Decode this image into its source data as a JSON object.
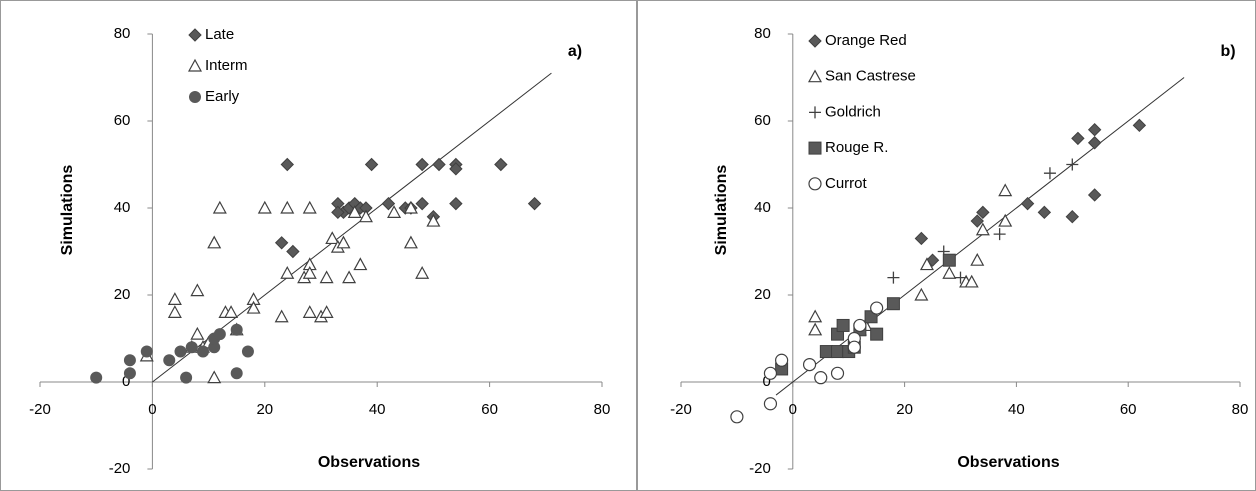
{
  "chart_data": [
    {
      "type": "scatter",
      "title": "a)",
      "x_label": "Observations",
      "y_label": "Simulations",
      "xlim": [
        -20,
        80
      ],
      "ylim": [
        -20,
        80
      ],
      "xticks": [
        -20,
        0,
        20,
        40,
        60,
        80
      ],
      "yticks": [
        -20,
        0,
        20,
        40,
        60,
        80
      ],
      "reference_line": {
        "x": [
          0,
          71
        ],
        "y": [
          0,
          71
        ]
      },
      "series": [
        {
          "name": "Late",
          "marker": "diamond",
          "color": "#595959",
          "x": [
            24,
            23,
            25,
            33,
            34,
            35,
            36,
            37,
            38,
            39,
            42,
            45,
            46,
            48,
            48,
            50,
            51,
            54,
            54,
            54,
            62,
            68,
            33
          ],
          "values": [
            50,
            32,
            30,
            41,
            39,
            40,
            41,
            40,
            40,
            50,
            41,
            40,
            40,
            50,
            41,
            38,
            50,
            50,
            49,
            41,
            50,
            41,
            39
          ]
        },
        {
          "name": "Interm",
          "marker": "triangle",
          "color": "#404040",
          "x": [
            -1,
            4,
            4,
            7,
            8,
            8,
            9,
            10,
            11,
            11,
            12,
            13,
            14,
            15,
            18,
            18,
            20,
            23,
            24,
            24,
            27,
            28,
            28,
            28,
            28,
            30,
            31,
            31,
            32,
            33,
            34,
            35,
            36,
            37,
            38,
            43,
            46,
            46,
            48,
            50
          ],
          "values": [
            6,
            19,
            16,
            8,
            21,
            11,
            8,
            9,
            32,
            1,
            40,
            16,
            16,
            12,
            19,
            17,
            40,
            15,
            40,
            25,
            24,
            40,
            27,
            25,
            16,
            15,
            24,
            16,
            33,
            31,
            32,
            24,
            39,
            27,
            38,
            39,
            32,
            40,
            25,
            37
          ]
        },
        {
          "name": "Early",
          "marker": "circle",
          "color": "#595959",
          "x": [
            -10,
            -4,
            -4,
            -1,
            3,
            5,
            6,
            7,
            9,
            11,
            11,
            12,
            15,
            15,
            17
          ],
          "values": [
            1,
            2,
            5,
            7,
            5,
            7,
            1,
            8,
            7,
            8,
            10,
            11,
            12,
            2,
            7
          ]
        }
      ]
    },
    {
      "type": "scatter",
      "title": "b)",
      "x_label": "Observations",
      "y_label": "Simulations",
      "xlim": [
        -20,
        80
      ],
      "ylim": [
        -20,
        80
      ],
      "xticks": [
        -20,
        0,
        20,
        40,
        60,
        80
      ],
      "yticks": [
        -20,
        0,
        20,
        40,
        60,
        80
      ],
      "reference_line": {
        "x": [
          -3,
          70
        ],
        "y": [
          -3,
          70
        ]
      },
      "series": [
        {
          "name": "Orange Red",
          "marker": "diamond",
          "color": "#595959",
          "x": [
            23,
            25,
            33,
            34,
            42,
            45,
            50,
            51,
            54,
            54,
            54,
            62
          ],
          "values": [
            33,
            28,
            37,
            39,
            41,
            39,
            38,
            56,
            58,
            55,
            43,
            59
          ]
        },
        {
          "name": "San Castrese",
          "marker": "triangle",
          "color": "#404040",
          "x": [
            4,
            4,
            12,
            13,
            23,
            24,
            28,
            31,
            32,
            33,
            34,
            38,
            38
          ],
          "values": [
            15,
            12,
            12,
            13,
            20,
            27,
            25,
            23,
            23,
            28,
            35,
            44,
            37
          ]
        },
        {
          "name": "Goldrich",
          "marker": "plus",
          "color": "#404040",
          "x": [
            11,
            18,
            27,
            30,
            37,
            46,
            50
          ],
          "values": [
            9,
            24,
            30,
            24,
            34,
            48,
            50
          ]
        },
        {
          "name": "Rouge R.",
          "marker": "square",
          "color": "#595959",
          "x": [
            -2,
            6,
            8,
            8,
            9,
            10,
            11,
            12,
            14,
            15,
            18,
            28
          ],
          "values": [
            3,
            7,
            11,
            7,
            13,
            7,
            8,
            12,
            15,
            11,
            18,
            28
          ]
        },
        {
          "name": "Currot",
          "marker": "open-circle",
          "color": "#404040",
          "x": [
            -10,
            -4,
            -4,
            -2,
            3,
            5,
            8,
            11,
            11,
            12,
            15
          ],
          "values": [
            -8,
            -5,
            2,
            5,
            4,
            1,
            2,
            10,
            8,
            13,
            17
          ]
        }
      ]
    }
  ]
}
